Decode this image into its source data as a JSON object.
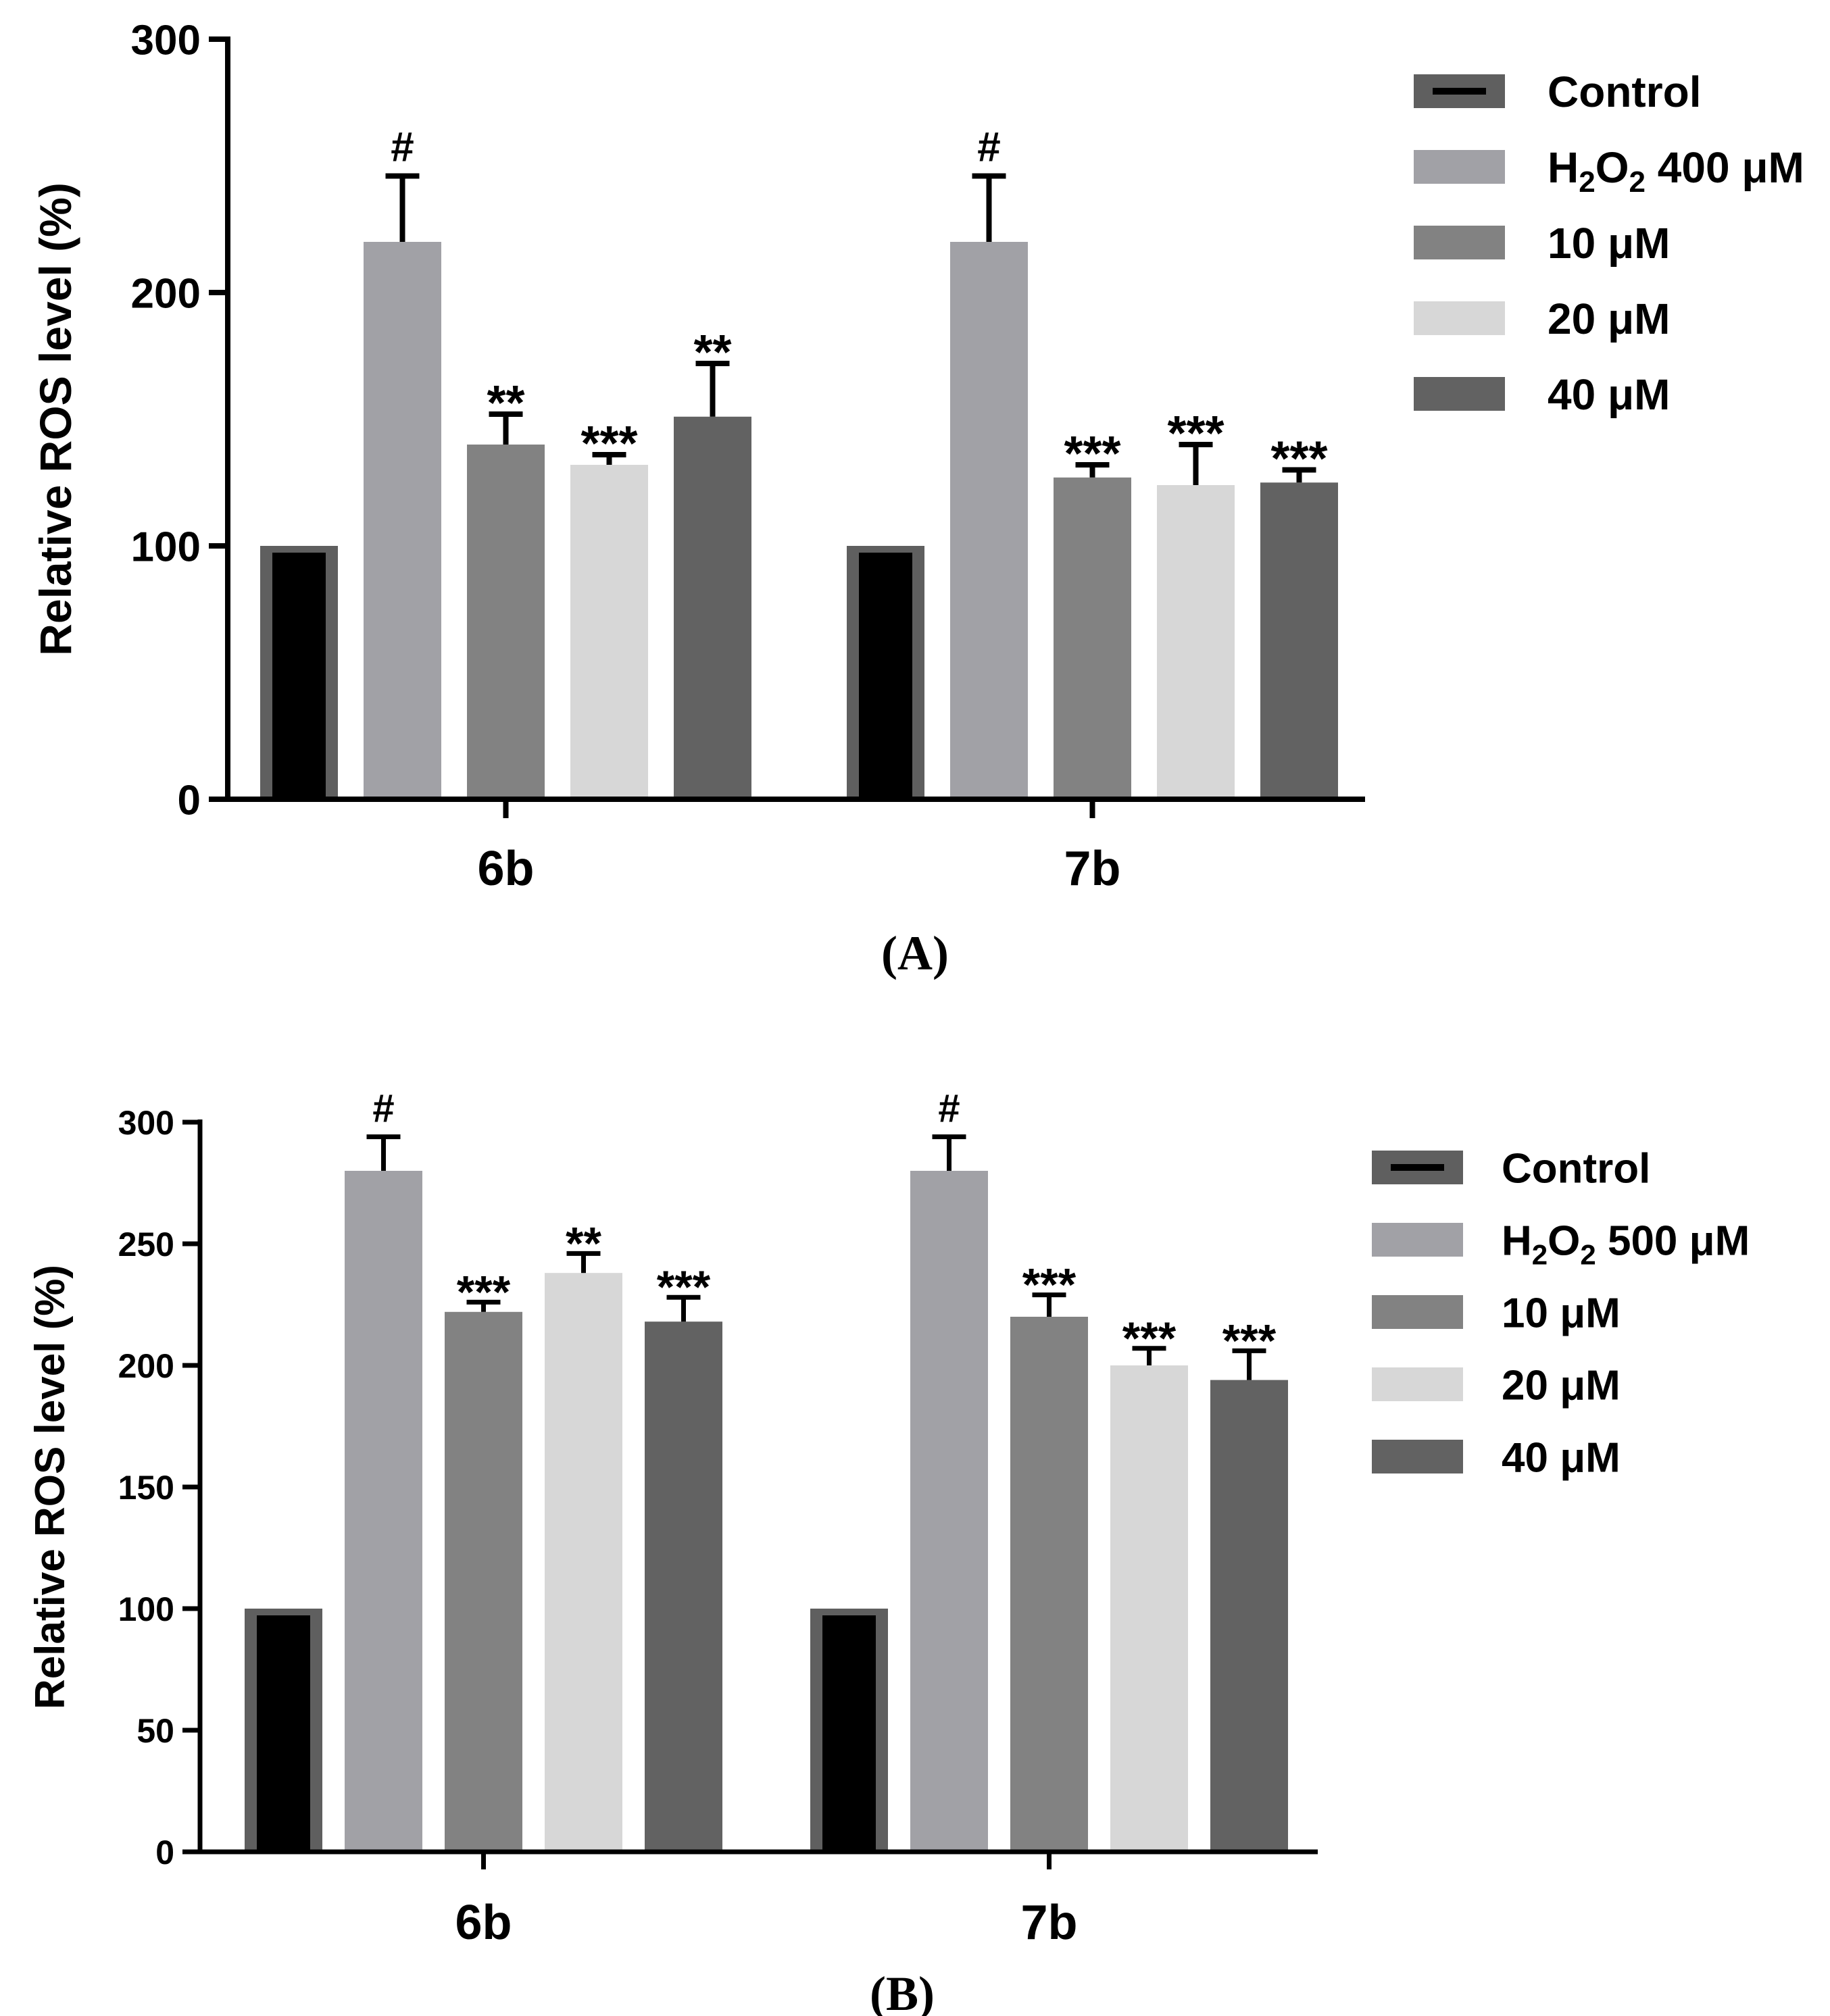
{
  "chart_data": [
    {
      "type": "bar",
      "panel_label": "(A)",
      "ylabel": "Relative ROS level (%)",
      "xlabel": "",
      "ylim": [
        0,
        300
      ],
      "yticks": [
        "0",
        "100",
        "200",
        "300"
      ],
      "categories": [
        "6b",
        "7b"
      ],
      "legend": {
        "placement": "right",
        "entries": [
          {
            "parts": [
              "Control"
            ]
          },
          {
            "parts": [
              "H",
              "2",
              "O",
              "2",
              " 400 μM"
            ]
          },
          {
            "parts": [
              "10 μM"
            ]
          },
          {
            "parts": [
              "20 μM"
            ]
          },
          {
            "parts": [
              "40 μM"
            ]
          }
        ]
      },
      "series": [
        {
          "name": "Control",
          "values": [
            100,
            100
          ],
          "errors": [
            0,
            0
          ],
          "marks": [
            "",
            ""
          ],
          "color": "#000000"
        },
        {
          "name": "H2O2 400 μM",
          "values": [
            220,
            220
          ],
          "errors": [
            26,
            26
          ],
          "marks": [
            "#",
            "#"
          ],
          "color": "#a1a1a6"
        },
        {
          "name": "10 μM",
          "values": [
            140,
            127
          ],
          "errors": [
            12,
            5
          ],
          "marks": [
            "**",
            "***"
          ],
          "color": "#828282"
        },
        {
          "name": "20 μM",
          "values": [
            132,
            124
          ],
          "errors": [
            4,
            16
          ],
          "marks": [
            "***",
            "***"
          ],
          "color": "#d7d7d7"
        },
        {
          "name": "40 μM",
          "values": [
            151,
            125
          ],
          "errors": [
            21,
            5
          ],
          "marks": [
            "**",
            "***"
          ],
          "color": "#626262"
        }
      ]
    },
    {
      "type": "bar",
      "panel_label": "(B)",
      "ylabel": "Relative ROS level (%)",
      "xlabel": "",
      "ylim": [
        0,
        300
      ],
      "yticks": [
        "0",
        "50",
        "100",
        "150",
        "200",
        "250",
        "300"
      ],
      "categories": [
        "6b",
        "7b"
      ],
      "legend": {
        "placement": "right",
        "entries": [
          {
            "parts": [
              "Control"
            ]
          },
          {
            "parts": [
              "H",
              "2",
              "O",
              "2",
              " 500 μM"
            ]
          },
          {
            "parts": [
              "10 μM"
            ]
          },
          {
            "parts": [
              "20 μM"
            ]
          },
          {
            "parts": [
              "40 μM"
            ]
          }
        ]
      },
      "series": [
        {
          "name": "Control",
          "values": [
            100,
            100
          ],
          "errors": [
            0,
            0
          ],
          "marks": [
            "",
            ""
          ],
          "color": "#000000"
        },
        {
          "name": "H2O2 500 μM",
          "values": [
            280,
            280
          ],
          "errors": [
            14,
            14
          ],
          "marks": [
            "#",
            "#"
          ],
          "color": "#a1a1a6"
        },
        {
          "name": "10 μM",
          "values": [
            222,
            220
          ],
          "errors": [
            4,
            9
          ],
          "marks": [
            "***",
            "***"
          ],
          "color": "#828282"
        },
        {
          "name": "20 μM",
          "values": [
            238,
            200
          ],
          "errors": [
            8,
            7
          ],
          "marks": [
            "**",
            "***"
          ],
          "color": "#d7d7d7"
        },
        {
          "name": "40 μM",
          "values": [
            218,
            194
          ],
          "errors": [
            10,
            12
          ],
          "marks": [
            "***",
            "***"
          ],
          "color": "#626262"
        }
      ]
    }
  ],
  "colors": {
    "axis": "#000000",
    "control_outline": "#5f5f5f"
  }
}
